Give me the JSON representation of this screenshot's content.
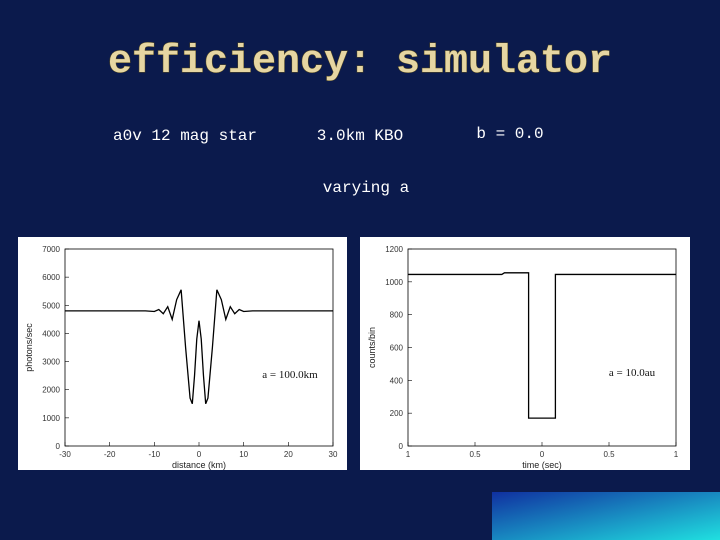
{
  "slide": {
    "title": "efficiency: simulator",
    "captions": [
      "a0v 12 mag star",
      "3.0km KBO",
      "b = 0.0",
      "varying a"
    ]
  },
  "chart_data": [
    {
      "type": "line",
      "color": "#000000",
      "xlabel": "distance (km)",
      "ylabel": "photons/sec",
      "annotation": "a = 100.0km",
      "x": [
        -30,
        -12,
        -10,
        -9,
        -8,
        -7,
        -6,
        -5,
        -4,
        -3,
        -2,
        -1.5,
        -1,
        -0.5,
        0,
        0.5,
        1,
        1.5,
        2,
        3,
        4,
        5,
        6,
        7,
        8,
        9,
        10,
        12,
        30
      ],
      "values": [
        4800,
        4800,
        4780,
        4850,
        4700,
        4950,
        4500,
        5200,
        5550,
        3500,
        1700,
        1500,
        2500,
        3800,
        4450,
        3800,
        2500,
        1500,
        1700,
        3500,
        5550,
        5200,
        4500,
        4950,
        4700,
        4850,
        4780,
        4800,
        4800
      ],
      "xlim": [
        -30,
        30
      ],
      "xticks": [
        -30,
        -20,
        -10,
        0,
        10,
        20,
        30
      ],
      "ylim": [
        0,
        7000
      ],
      "yticks": [
        0,
        1000,
        2000,
        3000,
        4000,
        5000,
        6000,
        7000
      ]
    },
    {
      "type": "line",
      "color": "#000000",
      "xlabel": "time (sec)",
      "ylabel": "counts/bin",
      "annotation": "a = 10.0au",
      "x": [
        -1,
        -0.3,
        -0.28,
        -0.1,
        -0.1,
        0.1,
        0.1,
        1
      ],
      "values": [
        1045,
        1045,
        1055,
        1055,
        170,
        170,
        1045,
        1045
      ],
      "xlim": [
        -1,
        1
      ],
      "xticks": [
        {
          "value": -1,
          "label": "1"
        },
        {
          "value": -0.5,
          "label": "0.5"
        },
        0,
        0.5,
        1
      ],
      "ylim": [
        0,
        1200
      ],
      "yticks": [
        0,
        200,
        400,
        600,
        800,
        1000,
        1200
      ]
    }
  ]
}
